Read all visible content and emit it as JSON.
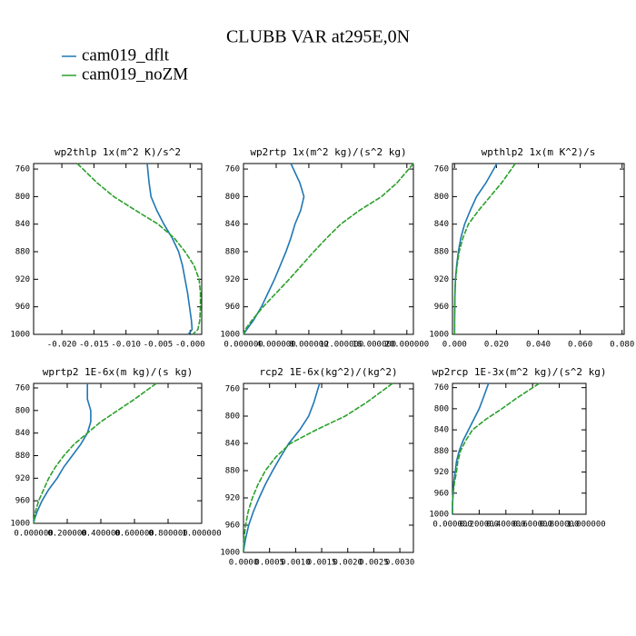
{
  "title": "CLUBB VAR at295E,0N",
  "chart_data": [
    {
      "type": "line",
      "title": "wp2thlp  1x(m^2 K)/s^2",
      "y": [
        752,
        780,
        800,
        820,
        840,
        860,
        880,
        900,
        920,
        940,
        960,
        980,
        993,
        1000
      ],
      "ylim": [
        1000,
        752
      ],
      "yticks": [
        760,
        800,
        840,
        880,
        920,
        960,
        1000
      ],
      "xlim": [
        -0.0244,
        0.0018
      ],
      "xticks": [
        {
          "value": -0.02,
          "label": "-0.020"
        },
        {
          "value": -0.015,
          "label": "-0.015"
        },
        {
          "value": -0.01,
          "label": "-0.010"
        },
        {
          "value": -0.005,
          "label": "-0.005"
        },
        {
          "value": 0,
          "label": "-0.000"
        }
      ],
      "series": [
        {
          "name": "cam019_dflt",
          "color": "#1f77b4",
          "values": [
            -0.0067,
            -0.0064,
            -0.0061,
            -0.0052,
            -0.0041,
            -0.0028,
            -0.0018,
            -0.0012,
            -0.0008,
            -0.0004,
            -0.0001,
            0.0002,
            0.0003,
            -0.0003
          ]
        },
        {
          "name": "cam019_noZM",
          "color": "#2ca02c",
          "values": [
            -0.0176,
            -0.0145,
            -0.0119,
            -0.0085,
            -0.005,
            -0.0025,
            -0.0008,
            0.0006,
            0.0014,
            0.0016,
            0.0016,
            0.0015,
            0.0012,
            0.0004
          ]
        }
      ]
    },
    {
      "type": "line",
      "title": "wp2rtp  1x(m^2 kg)/(s^2 kg)",
      "y": [
        752,
        780,
        800,
        820,
        840,
        860,
        880,
        900,
        920,
        940,
        960,
        980,
        993,
        1000
      ],
      "ylim": [
        1000,
        752
      ],
      "yticks": [
        760,
        800,
        840,
        880,
        920,
        960,
        1000
      ],
      "xlim": [
        0,
        20.8
      ],
      "xticks": [
        {
          "value": 0,
          "label": "0.000000"
        },
        {
          "value": 4,
          "label": "4.000000"
        },
        {
          "value": 8,
          "label": "8.000000"
        },
        {
          "value": 12,
          "label": "12.000000"
        },
        {
          "value": 16,
          "label": "16.000000"
        },
        {
          "value": 20,
          "label": "20.000000"
        }
      ],
      "series": [
        {
          "name": "cam019_dflt",
          "color": "#1f77b4",
          "values": [
            5.8,
            6.9,
            7.4,
            7.0,
            6.3,
            5.8,
            5.2,
            4.5,
            3.8,
            3.0,
            2.2,
            1.2,
            0.4,
            0.0
          ]
        },
        {
          "name": "cam019_noZM",
          "color": "#2ca02c",
          "values": [
            20.8,
            18.8,
            16.9,
            14.2,
            11.9,
            10.2,
            8.6,
            7.1,
            5.6,
            4.0,
            2.4,
            1.0,
            0.2,
            0.0
          ]
        }
      ]
    },
    {
      "type": "line",
      "title": "wpthlp2  1x(m K^2)/s",
      "y": [
        752,
        780,
        800,
        820,
        840,
        860,
        880,
        900,
        920,
        940,
        960,
        980,
        993,
        1000
      ],
      "ylim": [
        1000,
        752
      ],
      "yticks": [
        760,
        800,
        840,
        880,
        920,
        960,
        1000
      ],
      "xlim": [
        -0.001,
        0.081
      ],
      "xticks": [
        {
          "value": 0,
          "label": "0.000"
        },
        {
          "value": 0.02,
          "label": "0.020"
        },
        {
          "value": 0.04,
          "label": "0.040"
        },
        {
          "value": 0.06,
          "label": "0.060"
        },
        {
          "value": 0.08,
          "label": "0.080"
        }
      ],
      "series": [
        {
          "name": "cam019_dflt",
          "color": "#1f77b4",
          "values": [
            0.0202,
            0.015,
            0.0105,
            0.0075,
            0.0048,
            0.003,
            0.0018,
            0.001,
            0.0004,
            0.0002,
            0.0001,
            0,
            0,
            0
          ]
        },
        {
          "name": "cam019_noZM",
          "color": "#2ca02c",
          "values": [
            0.029,
            0.0225,
            0.017,
            0.0115,
            0.0066,
            0.004,
            0.0022,
            0.0012,
            0.0005,
            0.0002,
            0.0001,
            0,
            0,
            0
          ]
        }
      ]
    },
    {
      "type": "line",
      "title": "wprtp2  1E-6x(m kg)/(s kg)",
      "y": [
        752,
        780,
        800,
        820,
        840,
        860,
        880,
        900,
        920,
        940,
        960,
        980,
        993,
        1000
      ],
      "ylim": [
        1000,
        752
      ],
      "yticks": [
        760,
        800,
        840,
        880,
        920,
        960,
        1000
      ],
      "xlim": [
        0,
        1
      ],
      "xticks": [
        {
          "value": 0,
          "label": "0.000000"
        },
        {
          "value": 0.2,
          "label": "0.200000"
        },
        {
          "value": 0.4,
          "label": "0.400000"
        },
        {
          "value": 0.6,
          "label": "0.600000"
        },
        {
          "value": 0.8,
          "label": "0.800000"
        },
        {
          "value": 1,
          "label": "1.000000"
        }
      ],
      "series": [
        {
          "name": "cam019_dflt",
          "color": "#1f77b4",
          "values": [
            0.32,
            0.32,
            0.34,
            0.34,
            0.32,
            0.28,
            0.23,
            0.18,
            0.14,
            0.09,
            0.05,
            0.02,
            0.005,
            0
          ]
        },
        {
          "name": "cam019_noZM",
          "color": "#2ca02c",
          "values": [
            0.73,
            0.6,
            0.5,
            0.4,
            0.32,
            0.24,
            0.18,
            0.13,
            0.09,
            0.06,
            0.03,
            0.01,
            0.003,
            0
          ]
        }
      ]
    },
    {
      "type": "line",
      "title": "rcp2  1E-6x(kg^2)/(kg^2)",
      "y": [
        752,
        780,
        800,
        820,
        840,
        860,
        880,
        900,
        920,
        940,
        960,
        980,
        993,
        1000
      ],
      "ylim": [
        1000,
        752
      ],
      "yticks": [
        760,
        800,
        840,
        880,
        920,
        960,
        1000
      ],
      "xlim": [
        0,
        0.00326
      ],
      "xticks": [
        {
          "value": 0,
          "label": "0.0000"
        },
        {
          "value": 0.0005,
          "label": "0.0005"
        },
        {
          "value": 0.001,
          "label": "0.0010"
        },
        {
          "value": 0.0015,
          "label": "0.0015"
        },
        {
          "value": 0.002,
          "label": "0.0020"
        },
        {
          "value": 0.0025,
          "label": "0.0025"
        },
        {
          "value": 0.003,
          "label": "0.0030"
        }
      ],
      "series": [
        {
          "name": "cam019_dflt",
          "color": "#1f77b4",
          "values": [
            0.00146,
            0.00135,
            0.00125,
            0.00108,
            0.00087,
            0.00071,
            0.00056,
            0.00042,
            0.0003,
            0.00019,
            0.0001,
            4e-05,
            1e-05,
            0
          ]
        },
        {
          "name": "cam019_noZM",
          "color": "#2ca02c",
          "values": [
            0.00286,
            0.00236,
            0.00195,
            0.0014,
            0.0009,
            0.00062,
            0.00042,
            0.00028,
            0.00017,
            9e-05,
            4e-05,
            1e-05,
            0,
            0
          ]
        }
      ]
    },
    {
      "type": "line",
      "title": "wp2rcp  1E-3x(m^2 kg)/(s^2 kg)",
      "y": [
        752,
        780,
        800,
        820,
        840,
        860,
        880,
        900,
        920,
        940,
        960,
        980,
        993,
        1000
      ],
      "ylim": [
        1000,
        752
      ],
      "yticks": [
        760,
        800,
        840,
        880,
        920,
        960,
        1000
      ],
      "xlim": [
        0,
        1
      ],
      "xticks": [
        {
          "value": 0,
          "label": "0.000000"
        },
        {
          "value": 0.2,
          "label": "0.200000"
        },
        {
          "value": 0.4,
          "label": "0.400000"
        },
        {
          "value": 0.6,
          "label": "0.600000"
        },
        {
          "value": 0.8,
          "label": "0.800000"
        },
        {
          "value": 1,
          "label": "1.000000"
        }
      ],
      "series": [
        {
          "name": "cam019_dflt",
          "color": "#1f77b4",
          "values": [
            0.27,
            0.23,
            0.2,
            0.16,
            0.12,
            0.08,
            0.05,
            0.03,
            0.02,
            0.01,
            0.005,
            0,
            0,
            0
          ]
        },
        {
          "name": "cam019_noZM",
          "color": "#2ca02c",
          "values": [
            0.65,
            0.48,
            0.37,
            0.25,
            0.15,
            0.1,
            0.06,
            0.04,
            0.03,
            0.015,
            0.005,
            0,
            0,
            0
          ]
        }
      ]
    }
  ]
}
